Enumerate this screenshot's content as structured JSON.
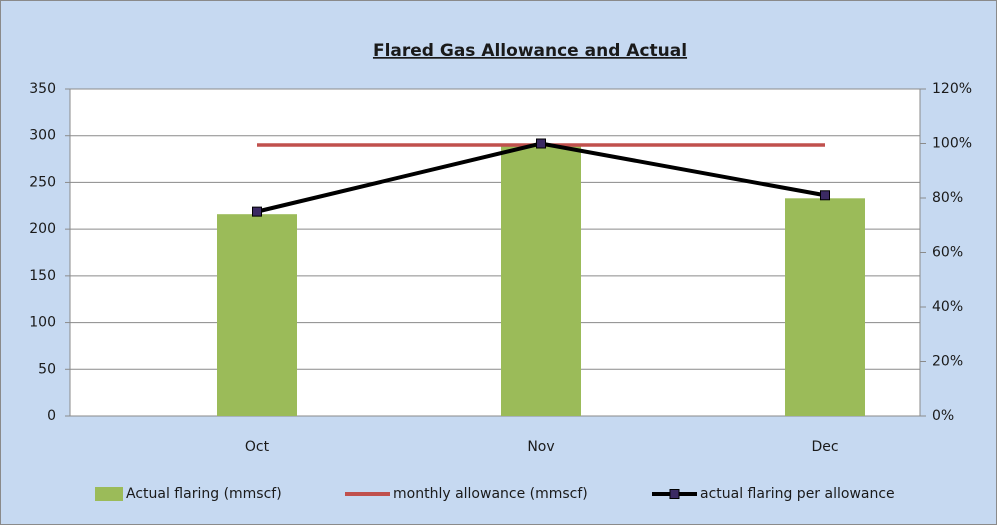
{
  "chart_data": {
    "type": "bar",
    "title": "Flared Gas Allowance and Actual",
    "categories": [
      "Oct",
      "Nov",
      "Dec"
    ],
    "series": [
      {
        "name": "Actual flaring (mmscf)",
        "type": "bar",
        "color": "#9bbb59",
        "values": [
          216,
          289,
          233
        ]
      },
      {
        "name": "monthly allowance (mmscf)",
        "type": "line",
        "color": "#c0504d",
        "values": [
          290,
          290,
          290
        ]
      },
      {
        "name": "actual flaring per allowance",
        "type": "line",
        "axis": "y2",
        "color": "#000000",
        "marker_color": "#3b2a63",
        "values": [
          75,
          100,
          81
        ]
      }
    ],
    "ylim": [
      0,
      350
    ],
    "yticks": [
      0,
      50,
      100,
      150,
      200,
      250,
      300,
      350
    ],
    "y2lim": [
      0,
      120
    ],
    "y2ticks": [
      {
        "value": 0,
        "label": "0%"
      },
      {
        "value": 20,
        "label": "20%"
      },
      {
        "value": 40,
        "label": "40%"
      },
      {
        "value": 60,
        "label": "60%"
      },
      {
        "value": 80,
        "label": "80%"
      },
      {
        "value": 100,
        "label": "100%"
      },
      {
        "value": 120,
        "label": "120%"
      }
    ],
    "grid": true,
    "legend": "bottom"
  }
}
